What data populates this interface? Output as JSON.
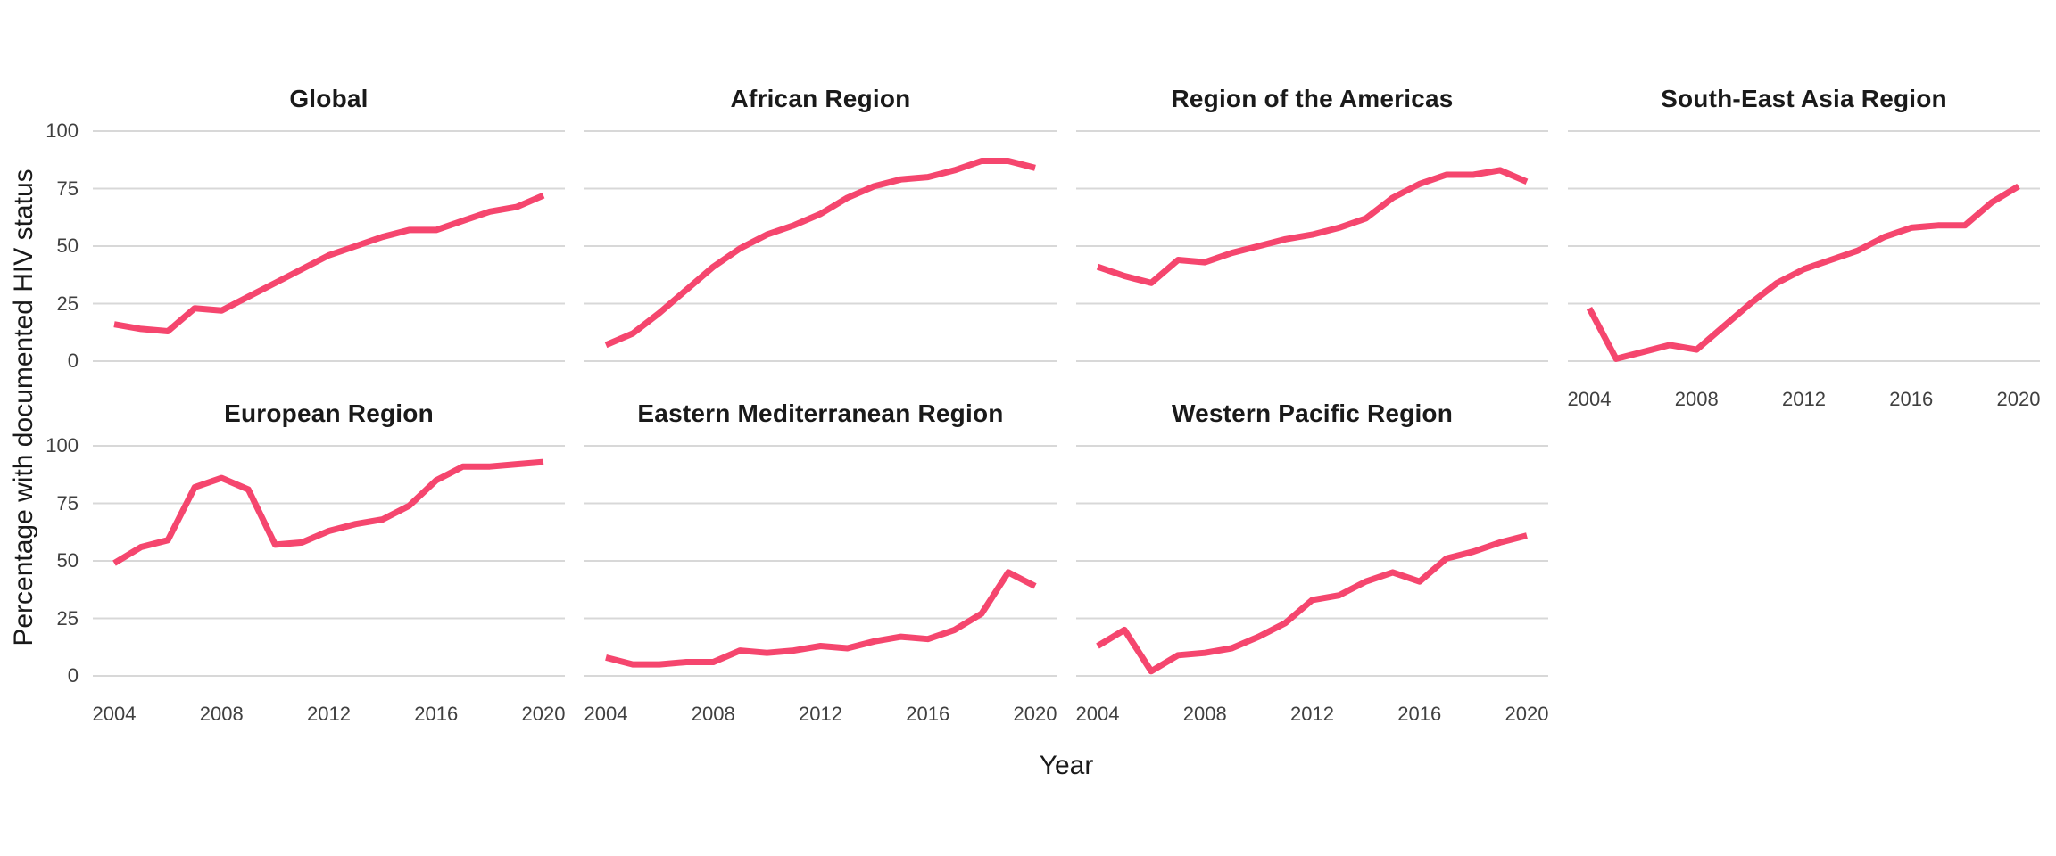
{
  "figure": {
    "y_axis_title": "Percentage with documented HIV status",
    "x_axis_title": "Year",
    "y_tick_labels": [
      "100",
      "75",
      "50",
      "25",
      "0"
    ],
    "x_tick_labels": [
      "2004",
      "2008",
      "2012",
      "2016",
      "2020"
    ]
  },
  "colors": {
    "line": "#F5466E",
    "gridline": "#D8D8D8",
    "title_text": "#1A1A1A",
    "axis_text": "#404040",
    "background": "#FFFFFF"
  },
  "chart_data": {
    "type": "line",
    "x": [
      2004,
      2005,
      2006,
      2007,
      2008,
      2009,
      2010,
      2011,
      2012,
      2013,
      2014,
      2015,
      2016,
      2017,
      2018,
      2019,
      2020
    ],
    "ylim": [
      0,
      100
    ],
    "y_gridlines": [
      0,
      25,
      50,
      75,
      100
    ],
    "x_tick_years": [
      2004,
      2008,
      2012,
      2016,
      2020
    ],
    "grid": "horizontal-only",
    "legend": "none",
    "ylabel": "Percentage with documented HIV status",
    "xlabel": "Year",
    "facets": [
      {
        "title": "Global",
        "values": [
          16,
          14,
          13,
          23,
          22,
          28,
          34,
          40,
          46,
          50,
          54,
          57,
          57,
          61,
          65,
          67,
          72
        ]
      },
      {
        "title": "African Region",
        "values": [
          7,
          12,
          21,
          31,
          41,
          49,
          55,
          59,
          64,
          71,
          76,
          79,
          80,
          83,
          87,
          87,
          84
        ]
      },
      {
        "title": "Region of the Americas",
        "values": [
          41,
          37,
          34,
          44,
          43,
          47,
          50,
          53,
          55,
          58,
          62,
          71,
          77,
          81,
          81,
          83,
          78
        ]
      },
      {
        "title": "South-East Asia Region",
        "values": [
          23,
          1,
          4,
          7,
          5,
          15,
          25,
          34,
          40,
          44,
          48,
          54,
          58,
          59,
          59,
          69,
          76
        ]
      },
      {
        "title": "European Region",
        "values": [
          49,
          56,
          59,
          82,
          86,
          81,
          57,
          58,
          63,
          66,
          68,
          74,
          85,
          91,
          91,
          92,
          93
        ]
      },
      {
        "title": "Eastern Mediterranean Region",
        "values": [
          8,
          5,
          5,
          6,
          6,
          11,
          10,
          11,
          13,
          12,
          15,
          17,
          16,
          20,
          27,
          45,
          39
        ]
      },
      {
        "title": "Western Pacific Region",
        "values": [
          13,
          20,
          2,
          9,
          10,
          12,
          17,
          23,
          33,
          35,
          41,
          45,
          41,
          51,
          54,
          58,
          61
        ]
      }
    ]
  }
}
